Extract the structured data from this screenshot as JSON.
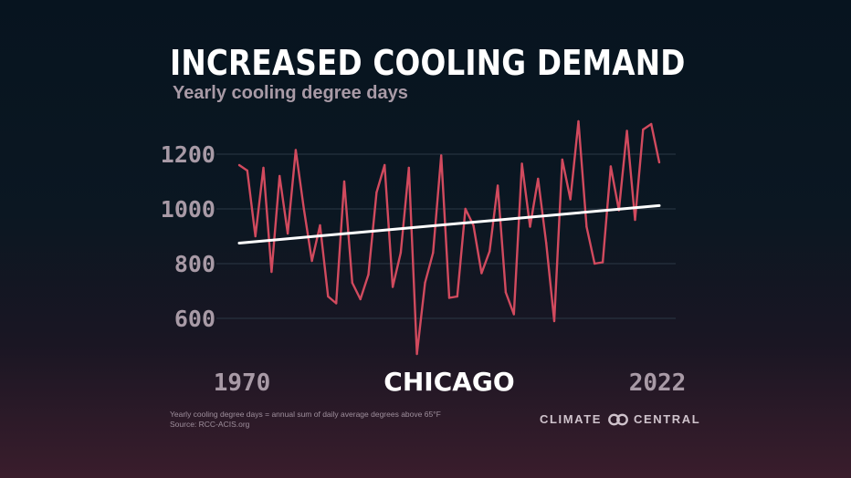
{
  "title": "INCREASED COOLING DEMAND",
  "subtitle": "Yearly cooling degree days",
  "colors": {
    "series": "#d14a5e",
    "trend": "#ffffff",
    "grid": "#2b3845",
    "tick_label": "#a89aa6"
  },
  "chart_data": {
    "type": "line",
    "title": "INCREASED COOLING DEMAND",
    "subtitle": "Yearly cooling degree days",
    "location_label": "CHICAGO",
    "x_start_label": "1970",
    "x_end_label": "2022",
    "xlim": [
      1970,
      2022
    ],
    "ylim": [
      450,
      1350
    ],
    "y_ticks": [
      600,
      800,
      1000,
      1200
    ],
    "grid": true,
    "x": [
      1970,
      1971,
      1972,
      1973,
      1974,
      1975,
      1976,
      1977,
      1978,
      1979,
      1980,
      1981,
      1982,
      1983,
      1984,
      1985,
      1986,
      1987,
      1988,
      1989,
      1990,
      1991,
      1992,
      1993,
      1994,
      1995,
      1996,
      1997,
      1998,
      1999,
      2000,
      2001,
      2002,
      2003,
      2004,
      2005,
      2006,
      2007,
      2008,
      2009,
      2010,
      2011,
      2012,
      2013,
      2014,
      2015,
      2016,
      2017,
      2018,
      2019,
      2020,
      2021,
      2022
    ],
    "series": [
      {
        "values": [
          1160,
          1140,
          900,
          1150,
          770,
          1120,
          910,
          1215,
          1000,
          810,
          940,
          680,
          655,
          1100,
          730,
          670,
          760,
          1060,
          1160,
          715,
          840,
          1150,
          470,
          730,
          840,
          1195,
          675,
          680,
          1000,
          940,
          765,
          845,
          1085,
          695,
          615,
          1165,
          935,
          1110,
          875,
          590,
          1180,
          1035,
          1320,
          935,
          800,
          805,
          1155,
          995,
          1285,
          960,
          1290,
          1310,
          1170
        ]
      }
    ],
    "trend_line": {
      "label": "trend",
      "start": [
        1970,
        875
      ],
      "end": [
        2022,
        1012
      ]
    }
  },
  "footer": {
    "note_line1": "Yearly cooling degree days = annual sum of daily average degrees above 65°F",
    "note_line2": "Source: RCC-ACIS.org",
    "logo_left": "CLIMATE",
    "logo_right": "CENTRAL",
    "logo_icon": "linked-rings-icon"
  }
}
